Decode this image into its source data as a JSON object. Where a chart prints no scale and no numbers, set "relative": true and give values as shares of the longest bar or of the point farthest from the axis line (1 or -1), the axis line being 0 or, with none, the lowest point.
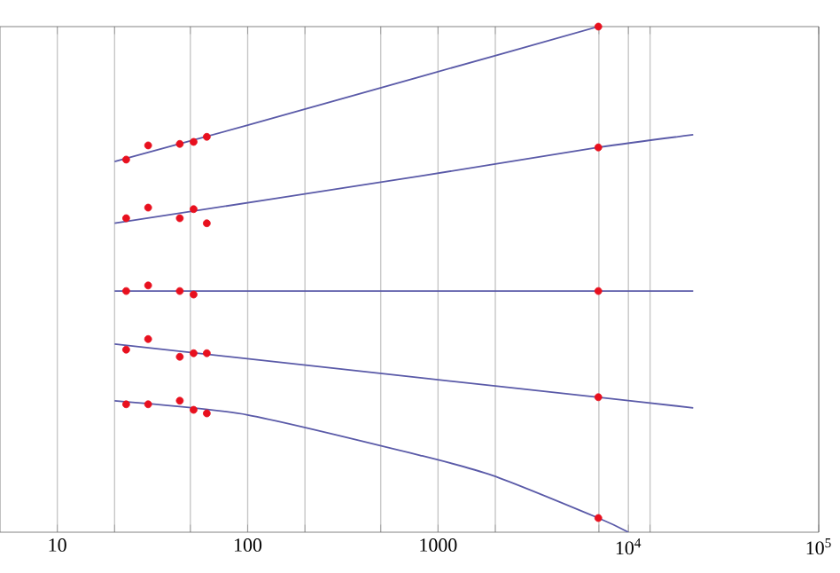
{
  "chart_data": {
    "type": "line",
    "relative": true,
    "log": "x",
    "grid": "x",
    "tick_labels": "x",
    "xlim": [
      5,
      100000
    ],
    "xticks": [
      10,
      {
        "value": 20,
        "label": null
      },
      {
        "value": 50,
        "label": null
      },
      100,
      {
        "value": 200,
        "label": null
      },
      {
        "value": 500,
        "label": null
      },
      1000,
      {
        "value": 2000,
        "label": null
      },
      {
        "value": 7000,
        "label": null
      },
      {
        "value": 10000,
        "label": "10$^{4}$"
      },
      {
        "value": 13000,
        "label": null
      },
      {
        "value": 100000,
        "label": "10$^{5}$"
      }
    ],
    "series": [
      {
        "marker": "none",
        "color": "#5a5aa8",
        "x": [
          20,
          100,
          826,
          6950
        ],
        "values": [
          0.733,
          0.805,
          0.902,
          1
        ]
      },
      {
        "marker": "none",
        "color": "#5a5aa8",
        "x": [
          20,
          826,
          6950,
          21900
        ],
        "values": [
          0.611,
          0.705,
          0.761,
          0.786
        ]
      },
      {
        "marker": "none",
        "color": "#5a5aa8",
        "x": [
          20,
          21900
        ],
        "values": [
          0.477,
          0.477
        ]
      },
      {
        "marker": "none",
        "color": "#5a5aa8",
        "x": [
          20,
          826,
          6950,
          21900
        ],
        "values": [
          0.372,
          0.305,
          0.267,
          0.246
        ]
      },
      {
        "marker": "none",
        "color": "#5a5aa8",
        "x": [
          20,
          100,
          826,
          1940,
          6950,
          10000
        ],
        "values": [
          0.26,
          0.232,
          0.151,
          0.112,
          0.028,
          0
        ]
      },
      {
        "type": "scatter",
        "marker": "circle",
        "color": "#e8101e",
        "x": [
          23,
          30,
          44,
          52,
          61,
          6950
        ],
        "values": [
          0.737,
          0.765,
          0.768,
          0.772,
          0.782,
          1
        ]
      },
      {
        "type": "scatter",
        "marker": "circle",
        "color": "#e8101e",
        "x": [
          23,
          30,
          44,
          52,
          61,
          6950
        ],
        "values": [
          0.621,
          0.642,
          0.621,
          0.639,
          0.611,
          0.761
        ]
      },
      {
        "type": "scatter",
        "marker": "circle",
        "color": "#e8101e",
        "x": [
          23,
          30,
          44,
          52,
          6950
        ],
        "values": [
          0.477,
          0.488,
          0.477,
          0.47,
          0.477
        ]
      },
      {
        "type": "scatter",
        "marker": "circle",
        "color": "#e8101e",
        "x": [
          23,
          30,
          44,
          52,
          61,
          6950
        ],
        "values": [
          0.361,
          0.382,
          0.347,
          0.354,
          0.354,
          0.267
        ]
      },
      {
        "type": "scatter",
        "marker": "circle",
        "color": "#e8101e",
        "x": [
          23,
          30,
          44,
          52,
          61,
          6950
        ],
        "values": [
          0.253,
          0.253,
          0.26,
          0.242,
          0.235,
          0.028
        ]
      }
    ]
  }
}
